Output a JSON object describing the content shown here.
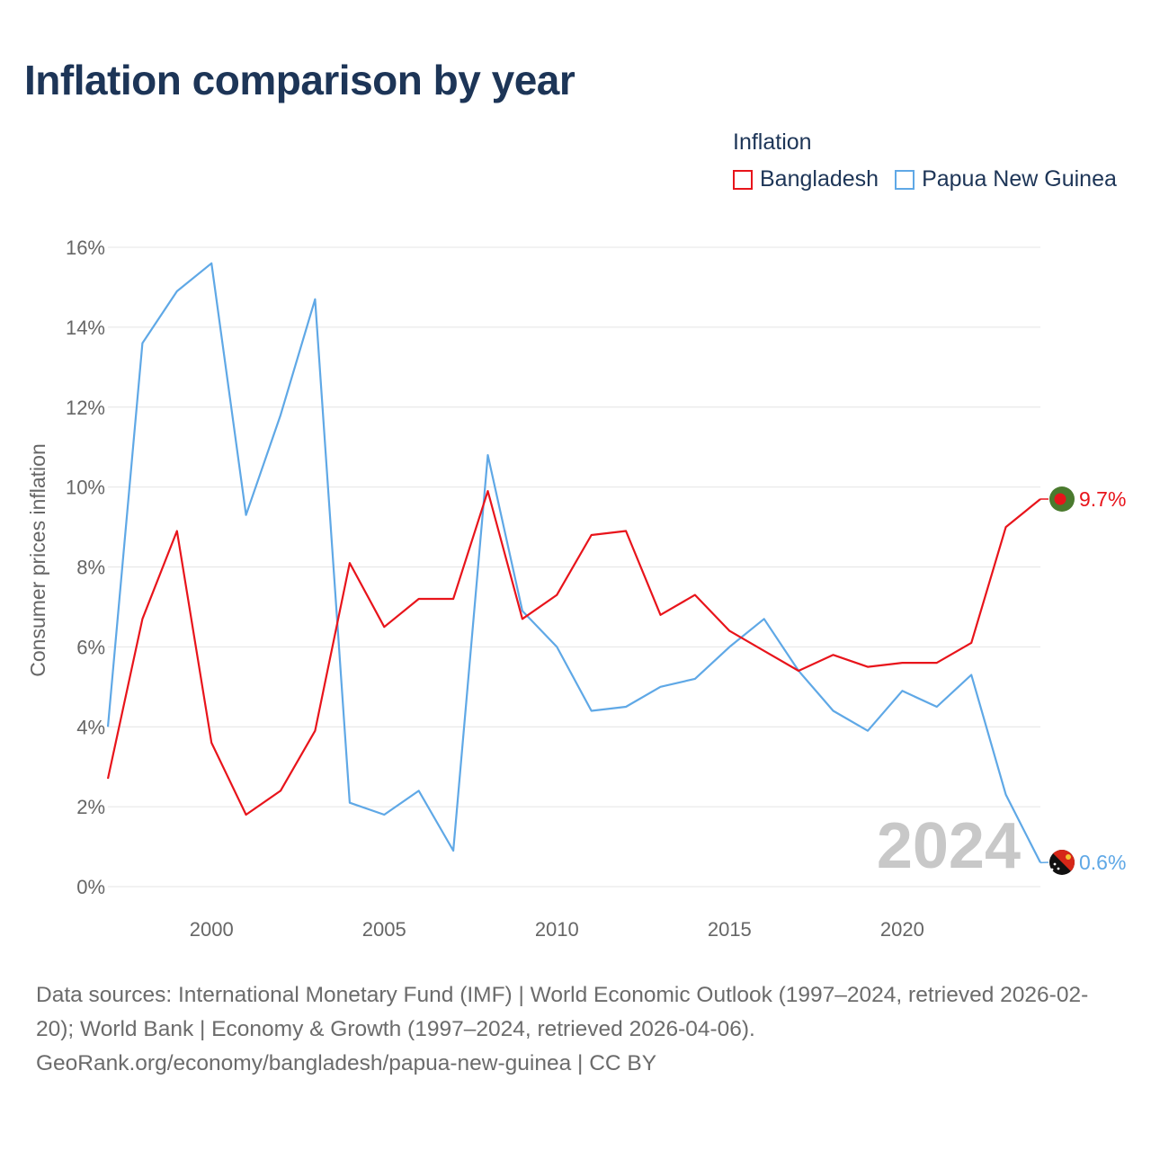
{
  "title": "Inflation comparison by year",
  "legend": {
    "title": "Inflation",
    "items": [
      {
        "label": "Bangladesh",
        "color": "#e8141b"
      },
      {
        "label": "Papua New Guinea",
        "color": "#5fa8e6"
      }
    ]
  },
  "chart_data": {
    "type": "line",
    "title": "Inflation comparison by year",
    "ylabel": "Consumer prices inflation",
    "xlabel": "",
    "x": [
      1997,
      1998,
      1999,
      2000,
      2001,
      2002,
      2003,
      2004,
      2005,
      2006,
      2007,
      2008,
      2009,
      2010,
      2011,
      2012,
      2013,
      2014,
      2015,
      2016,
      2017,
      2018,
      2019,
      2020,
      2021,
      2022,
      2023,
      2024
    ],
    "xlim": [
      1997,
      2024
    ],
    "ylim": [
      0,
      16
    ],
    "yticks": [
      0,
      2,
      4,
      6,
      8,
      10,
      12,
      14,
      16
    ],
    "ytick_labels": [
      "0%",
      "2%",
      "4%",
      "6%",
      "8%",
      "10%",
      "12%",
      "14%",
      "16%"
    ],
    "xticks": [
      2000,
      2005,
      2010,
      2015,
      2020
    ],
    "xtick_labels": [
      "2000",
      "2005",
      "2010",
      "2015",
      "2020"
    ],
    "grid": true,
    "legend_position": "top-right",
    "current_year_label": "2024",
    "series": [
      {
        "name": "Bangladesh",
        "color": "#e8141b",
        "end_label": "9.7%",
        "values": [
          2.7,
          6.7,
          8.9,
          3.6,
          1.8,
          2.4,
          3.9,
          8.1,
          6.5,
          7.2,
          7.2,
          9.9,
          6.7,
          7.3,
          8.8,
          8.9,
          6.8,
          7.3,
          6.4,
          5.9,
          5.4,
          5.8,
          5.5,
          5.6,
          5.6,
          6.1,
          9.0,
          9.7
        ]
      },
      {
        "name": "Papua New Guinea",
        "color": "#5fa8e6",
        "end_label": "0.6%",
        "values": [
          4.0,
          13.6,
          14.9,
          15.6,
          9.3,
          11.8,
          14.7,
          2.1,
          1.8,
          2.4,
          0.9,
          10.8,
          6.9,
          6.0,
          4.4,
          4.5,
          5.0,
          5.2,
          6.0,
          6.7,
          5.4,
          4.4,
          3.9,
          4.9,
          4.5,
          5.3,
          2.3,
          0.6
        ]
      }
    ]
  },
  "footer": {
    "sources": "Data sources: International Monetary Fund (IMF) | World Economic Outlook (1997–2024, retrieved 2026-02-20); World Bank | Economy & Growth (1997–2024, retrieved 2026-04-06).",
    "credit": "GeoRank.org/economy/bangladesh/papua-new-guinea | CC BY"
  }
}
